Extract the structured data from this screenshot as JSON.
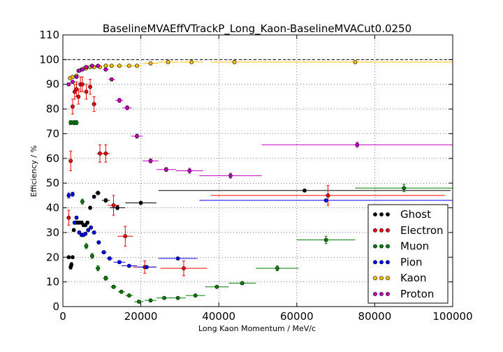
{
  "chart_data": {
    "type": "scatter",
    "title": "BaselineMVAEffVTrackP_Long_Kaon-BaselineMVACut0.0250",
    "xlabel": "Long Kaon Momentum / MeV/c",
    "ylabel": "Efficiency / %",
    "xlim": [
      0,
      100000
    ],
    "ylim": [
      0,
      110
    ],
    "xticks": [
      0,
      20000,
      40000,
      60000,
      80000,
      100000
    ],
    "yticks": [
      0,
      10,
      20,
      30,
      40,
      50,
      60,
      70,
      80,
      90,
      100,
      110
    ],
    "grid": true,
    "reference_line": 100,
    "legend_position": "bottom-right",
    "series": [
      {
        "name": "Ghost",
        "color": "#000000",
        "points": [
          [
            1500,
            20.0,
            300,
            0.5
          ],
          [
            2000,
            16.0,
            200,
            0.8
          ],
          [
            2200,
            17.0,
            200,
            0.8
          ],
          [
            2500,
            20.0,
            300,
            0.5
          ],
          [
            2800,
            31.0,
            300,
            0.6
          ],
          [
            3200,
            34.0,
            300,
            0.6
          ],
          [
            3800,
            34.0,
            300,
            0.6
          ],
          [
            4200,
            34.0,
            300,
            0.6
          ],
          [
            4800,
            34.0,
            300,
            0.6
          ],
          [
            5300,
            33.0,
            300,
            0.6
          ],
          [
            5800,
            33.0,
            300,
            0.6
          ],
          [
            6300,
            34.0,
            400,
            0.6
          ],
          [
            7000,
            40.0,
            400,
            0.6
          ],
          [
            8000,
            44.5,
            500,
            0.6
          ],
          [
            9000,
            46.0,
            700,
            0.7
          ],
          [
            11000,
            43.0,
            1000,
            0.7
          ],
          [
            14000,
            40.0,
            2000,
            0.7
          ],
          [
            20000,
            42.0,
            4000,
            0.6
          ],
          [
            62000,
            47.0,
            37500,
            0.5
          ]
        ]
      },
      {
        "name": "Electron",
        "color": "#ff0000",
        "points": [
          [
            1500,
            36.0,
            300,
            3.0
          ],
          [
            2000,
            59.0,
            300,
            4.0
          ],
          [
            2500,
            81.0,
            300,
            3.0
          ],
          [
            3000,
            87.0,
            300,
            3.0
          ],
          [
            3500,
            88.0,
            300,
            3.0
          ],
          [
            4000,
            85.0,
            300,
            3.0
          ],
          [
            4500,
            90.0,
            300,
            3.0
          ],
          [
            5000,
            90.0,
            400,
            3.0
          ],
          [
            6000,
            87.0,
            500,
            3.0
          ],
          [
            7000,
            89.0,
            500,
            3.0
          ],
          [
            8000,
            82.0,
            600,
            3.0
          ],
          [
            9500,
            62.0,
            800,
            3.5
          ],
          [
            11000,
            62.0,
            1000,
            3.5
          ],
          [
            13000,
            41.0,
            1500,
            4.0
          ],
          [
            16000,
            28.5,
            2000,
            4.0
          ],
          [
            21000,
            16.0,
            3000,
            2.5
          ],
          [
            31000,
            15.5,
            6000,
            3.0
          ],
          [
            68000,
            45.0,
            30000,
            4.0
          ]
        ]
      },
      {
        "name": "Muon",
        "color": "#007f00",
        "points": [
          [
            2000,
            74.5,
            300,
            0.8
          ],
          [
            2800,
            74.5,
            300,
            0.8
          ],
          [
            3500,
            74.5,
            300,
            0.8
          ],
          [
            5000,
            42.5,
            400,
            1.0
          ],
          [
            6000,
            24.5,
            500,
            1.0
          ],
          [
            7500,
            20.5,
            500,
            1.0
          ],
          [
            9000,
            15.5,
            600,
            1.0
          ],
          [
            11000,
            11.5,
            700,
            0.8
          ],
          [
            13000,
            8.0,
            800,
            0.6
          ],
          [
            15000,
            6.0,
            900,
            0.5
          ],
          [
            17000,
            4.5,
            1000,
            0.5
          ],
          [
            19500,
            2.0,
            1200,
            0.4
          ],
          [
            22500,
            2.5,
            1500,
            0.4
          ],
          [
            26000,
            3.5,
            2000,
            0.4
          ],
          [
            29500,
            3.5,
            2000,
            0.4
          ],
          [
            34000,
            4.5,
            2500,
            0.4
          ],
          [
            39500,
            8.0,
            3000,
            0.5
          ],
          [
            46000,
            9.5,
            3500,
            0.6
          ],
          [
            55000,
            15.5,
            5500,
            1.0
          ],
          [
            67500,
            27.0,
            7500,
            1.5
          ],
          [
            87500,
            48.0,
            12500,
            1.5
          ]
        ]
      },
      {
        "name": "Pion",
        "color": "#0000ff",
        "points": [
          [
            1500,
            45.0,
            300,
            1.0
          ],
          [
            2500,
            45.5,
            300,
            0.8
          ],
          [
            3000,
            34.0,
            300,
            0.6
          ],
          [
            3500,
            36.0,
            300,
            0.6
          ],
          [
            4200,
            30.0,
            300,
            0.6
          ],
          [
            4800,
            29.0,
            300,
            0.6
          ],
          [
            5300,
            29.0,
            300,
            0.6
          ],
          [
            5800,
            29.5,
            300,
            0.6
          ],
          [
            6500,
            31.0,
            400,
            0.6
          ],
          [
            7200,
            32.0,
            400,
            0.6
          ],
          [
            8000,
            30.0,
            500,
            0.6
          ],
          [
            9200,
            26.0,
            600,
            0.6
          ],
          [
            10500,
            22.0,
            700,
            0.6
          ],
          [
            12000,
            19.5,
            800,
            0.6
          ],
          [
            14500,
            18.0,
            1500,
            0.6
          ],
          [
            17000,
            16.5,
            2000,
            0.5
          ],
          [
            21500,
            16.0,
            2500,
            0.5
          ],
          [
            29500,
            19.5,
            5000,
            0.5
          ],
          [
            67500,
            43.0,
            32500,
            0.5
          ]
        ]
      },
      {
        "name": "Kaon",
        "color": "#ffbf00",
        "points": [
          [
            1800,
            92.5,
            300,
            0.5
          ],
          [
            2500,
            93.0,
            300,
            0.5
          ],
          [
            3500,
            93.5,
            300,
            0.5
          ],
          [
            4000,
            95.5,
            300,
            0.5
          ],
          [
            4800,
            96.0,
            300,
            0.5
          ],
          [
            5500,
            96.5,
            300,
            0.5
          ],
          [
            6000,
            96.5,
            400,
            0.4
          ],
          [
            7000,
            97.0,
            400,
            0.4
          ],
          [
            8000,
            97.0,
            500,
            0.4
          ],
          [
            9500,
            97.0,
            600,
            0.4
          ],
          [
            11000,
            97.5,
            700,
            0.3
          ],
          [
            12500,
            97.5,
            800,
            0.3
          ],
          [
            14500,
            97.5,
            1000,
            0.3
          ],
          [
            17000,
            97.5,
            1200,
            0.3
          ],
          [
            19000,
            97.5,
            1300,
            0.3
          ],
          [
            22500,
            98.5,
            2000,
            0.3
          ],
          [
            27000,
            99.0,
            2500,
            0.3
          ],
          [
            33000,
            99.0,
            3000,
            0.3
          ],
          [
            44000,
            99.0,
            6000,
            0.3
          ],
          [
            75000,
            99.0,
            25000,
            0.3
          ]
        ]
      },
      {
        "name": "Proton",
        "color": "#bf00bf",
        "points": [
          [
            1500,
            90.0,
            300,
            0.5
          ],
          [
            2500,
            91.0,
            300,
            0.5
          ],
          [
            3500,
            93.0,
            300,
            0.5
          ],
          [
            4200,
            95.5,
            300,
            0.5
          ],
          [
            5000,
            96.0,
            300,
            0.5
          ],
          [
            6000,
            97.0,
            400,
            0.5
          ],
          [
            7500,
            97.5,
            500,
            0.5
          ],
          [
            9000,
            97.5,
            600,
            0.5
          ],
          [
            11000,
            96.0,
            700,
            0.6
          ],
          [
            12500,
            92.0,
            800,
            0.6
          ],
          [
            14500,
            83.5,
            1000,
            0.8
          ],
          [
            16500,
            80.5,
            1200,
            0.8
          ],
          [
            19000,
            69.0,
            1500,
            0.8
          ],
          [
            22500,
            59.0,
            2000,
            0.8
          ],
          [
            26500,
            55.5,
            2500,
            0.8
          ],
          [
            32500,
            55.0,
            3500,
            1.0
          ],
          [
            43000,
            53.0,
            8000,
            1.0
          ],
          [
            75500,
            65.5,
            24500,
            1.0
          ]
        ]
      }
    ]
  }
}
